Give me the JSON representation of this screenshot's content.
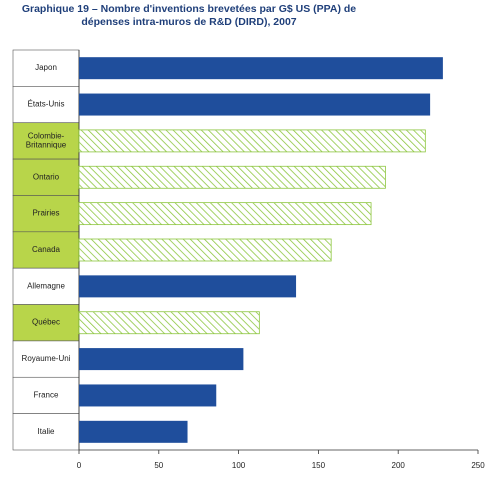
{
  "chart_data": {
    "type": "bar",
    "orientation": "horizontal",
    "title": "Graphique 19 – Nombre d'inventions brevetées par G$ US (PPA) de dépenses intra-muros de R&D (DIRD), 2007",
    "categories": [
      "Japon",
      "États-Unis",
      "Colombie-Britannique",
      "Ontario",
      "Prairies",
      "Canada",
      "Allemagne",
      "Québec",
      "Royaume-Uni",
      "France",
      "Italie"
    ],
    "values": [
      228,
      220,
      217,
      192,
      183,
      158,
      136,
      113,
      103,
      86,
      68
    ],
    "colors": [
      "#1f4e9c",
      "#1f4e9c",
      "#8dc63f",
      "#8dc63f",
      "#8dc63f",
      "#8dc63f",
      "#1f4e9c",
      "#8dc63f",
      "#1f4e9c",
      "#1f4e9c",
      "#1f4e9c"
    ],
    "hatch": [
      false,
      false,
      true,
      true,
      true,
      true,
      false,
      true,
      false,
      false,
      false
    ],
    "xlim": [
      0,
      250
    ],
    "xticks": [
      0,
      50,
      100,
      150,
      200,
      250
    ]
  }
}
